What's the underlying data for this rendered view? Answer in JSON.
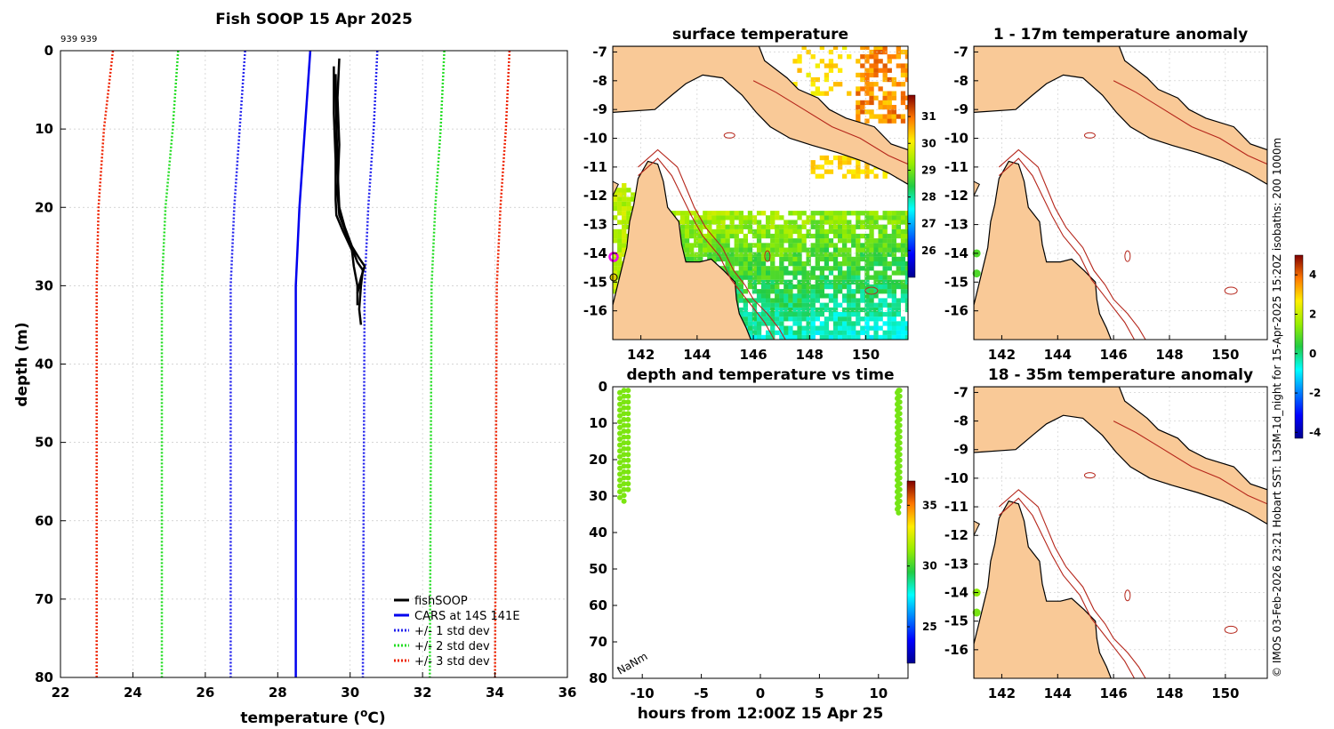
{
  "colors": {
    "land": "#F9C997",
    "fish": "#000000",
    "cars": "#0000EE",
    "std1": "#2222EE",
    "std2": "#22DD22",
    "std3": "#EE2200",
    "isobath": "#B5261B",
    "grid": "#C8C8C8"
  },
  "chart_data": [
    {
      "type": "line",
      "title": "Fish SOOP 15 Apr 2025",
      "corner_note": "939 939",
      "xlabel_main": "temperature (",
      "xlabel_sup": "o",
      "xlabel_tail": "C)",
      "ylabel": "depth (m)",
      "xlim": [
        22,
        36
      ],
      "ylim": [
        0,
        80
      ],
      "y_reversed": true,
      "xticks": [
        22,
        24,
        26,
        28,
        30,
        32,
        34,
        36
      ],
      "yticks": [
        0,
        10,
        20,
        30,
        40,
        50,
        60,
        70,
        80
      ],
      "series": [
        {
          "name": "fishSOOP",
          "style": "solid",
          "profiles": [
            [
              [
                29.7,
                1
              ],
              [
                29.65,
                6
              ],
              [
                29.7,
                12
              ],
              [
                29.65,
                18
              ],
              [
                29.7,
                21
              ],
              [
                29.95,
                24
              ],
              [
                30.2,
                27
              ],
              [
                30.35,
                28
              ],
              [
                30.3,
                30
              ],
              [
                30.25,
                33
              ],
              [
                30.3,
                35
              ]
            ],
            [
              [
                29.55,
                2
              ],
              [
                29.55,
                8
              ],
              [
                29.6,
                14
              ],
              [
                29.6,
                19
              ],
              [
                29.62,
                21
              ],
              [
                29.8,
                23
              ],
              [
                30.05,
                25.5
              ],
              [
                30.1,
                27.5
              ],
              [
                30.2,
                30
              ],
              [
                30.2,
                32.5
              ]
            ],
            [
              [
                29.6,
                3
              ],
              [
                29.62,
                9
              ],
              [
                29.65,
                15
              ],
              [
                29.7,
                20
              ],
              [
                29.85,
                22.5
              ],
              [
                30.05,
                25
              ],
              [
                30.25,
                26.5
              ],
              [
                30.4,
                27.5
              ],
              [
                30.3,
                29
              ],
              [
                30.2,
                31
              ]
            ]
          ]
        },
        {
          "name": "CARS at 14S 141E",
          "style": "solid",
          "points": [
            [
              28.9,
              0
            ],
            [
              28.75,
              10
            ],
            [
              28.6,
              20
            ],
            [
              28.5,
              30
            ],
            [
              28.5,
              40
            ],
            [
              28.5,
              80
            ]
          ]
        },
        {
          "name": "+/- 1 std dev",
          "style": "dotted",
          "left": [
            [
              27.1,
              0
            ],
            [
              26.95,
              10
            ],
            [
              26.8,
              20
            ],
            [
              26.7,
              30
            ],
            [
              26.7,
              80
            ]
          ],
          "right": [
            [
              30.75,
              0
            ],
            [
              30.65,
              10
            ],
            [
              30.5,
              20
            ],
            [
              30.4,
              30
            ],
            [
              30.35,
              80
            ]
          ]
        },
        {
          "name": "+/- 2 std dev",
          "style": "dotted",
          "left": [
            [
              25.25,
              0
            ],
            [
              25.1,
              10
            ],
            [
              24.9,
              20
            ],
            [
              24.8,
              30
            ],
            [
              24.8,
              80
            ]
          ],
          "right": [
            [
              32.6,
              0
            ],
            [
              32.5,
              10
            ],
            [
              32.35,
              20
            ],
            [
              32.25,
              30
            ],
            [
              32.2,
              80
            ]
          ]
        },
        {
          "name": "+/- 3 std dev",
          "style": "dotted",
          "left": [
            [
              23.45,
              0
            ],
            [
              23.2,
              10
            ],
            [
              23.05,
              20
            ],
            [
              23.0,
              30
            ],
            [
              23.0,
              80
            ]
          ],
          "right": [
            [
              34.4,
              0
            ],
            [
              34.3,
              10
            ],
            [
              34.15,
              20
            ],
            [
              34.05,
              30
            ],
            [
              34.0,
              80
            ]
          ]
        }
      ]
    },
    {
      "type": "heatmap",
      "title": "surface temperature",
      "xlim": [
        141,
        151.5
      ],
      "ylim": [
        -17,
        -6.8
      ],
      "xticks": [
        142,
        144,
        146,
        148,
        150
      ],
      "yticks": [
        -7,
        -8,
        -9,
        -10,
        -11,
        -12,
        -13,
        -14,
        -15,
        -16
      ],
      "colorbar": {
        "min": 25,
        "max": 31.8,
        "ticks": [
          26,
          27,
          28,
          29,
          30,
          31
        ]
      }
    },
    {
      "type": "heatmap",
      "title": "1 - 17m temperature anomaly",
      "xlim": [
        141,
        151.5
      ],
      "ylim": [
        -17,
        -6.8
      ],
      "xticks": [
        142,
        144,
        146,
        148,
        150
      ],
      "yticks": [
        -7,
        -8,
        -9,
        -10,
        -11,
        -12,
        -13,
        -14,
        -15,
        -16
      ],
      "points": [
        {
          "lon": 141.1,
          "lat": -14.0,
          "anomaly": 0.8
        },
        {
          "lon": 141.1,
          "lat": -14.7,
          "anomaly": 0.8
        }
      ]
    },
    {
      "type": "heatmap",
      "title": "18 - 35m temperature anomaly",
      "xlim": [
        141,
        151.5
      ],
      "ylim": [
        -17,
        -6.8
      ],
      "xticks": [
        142,
        144,
        146,
        148,
        150
      ],
      "yticks": [
        -7,
        -8,
        -9,
        -10,
        -11,
        -12,
        -13,
        -14,
        -15,
        -16
      ],
      "points": [
        {
          "lon": 141.1,
          "lat": -14.0,
          "anomaly": 1.4
        },
        {
          "lon": 141.1,
          "lat": -14.7,
          "anomaly": 1.2
        }
      ],
      "colorbar": {
        "min": -4.3,
        "max": 5.0,
        "ticks": [
          4,
          2,
          0,
          -2,
          -4
        ]
      }
    },
    {
      "type": "scatter",
      "title": "depth and temperature vs time",
      "xlabel": "hours from 12:00Z 15 Apr 25",
      "xlim": [
        -12.5,
        12.5
      ],
      "ylim": [
        0,
        80
      ],
      "y_reversed": true,
      "xticks": [
        -10,
        -5,
        0,
        5,
        10
      ],
      "xtick_labels": [
        "-10",
        "-5",
        "0",
        "5",
        "10"
      ],
      "yticks": [
        0,
        10,
        20,
        30,
        40,
        50,
        60,
        70,
        80
      ],
      "annotation": "NaNm",
      "clusters": [
        {
          "hour_start": -11.9,
          "hour_end": -11.2,
          "depth_min": 1,
          "depth_max": 32,
          "temperature": 30.9
        },
        {
          "hour_start": 11.6,
          "hour_end": 11.8,
          "depth_min": 1,
          "depth_max": 35,
          "temperature": 30.8
        }
      ],
      "colorbar": {
        "min": 22,
        "max": 37,
        "ticks": [
          35,
          30,
          25
        ]
      }
    }
  ],
  "legend_labels": [
    "fishSOOP",
    "CARS at 14S 141E",
    "+/- 1 std dev",
    "+/- 2 std dev",
    "+/- 3 std dev"
  ],
  "side_note": "© IMOS 03-Feb-2026 23:21 Hobart SST: L3SM-1d_night for 15-Apr-2025 15:20Z isobaths: 200  1000m"
}
